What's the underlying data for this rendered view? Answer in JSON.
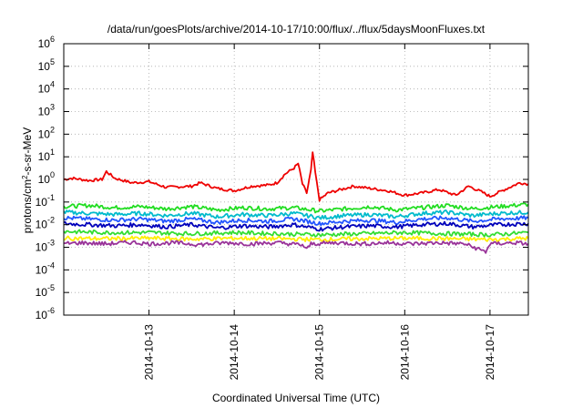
{
  "chart_data": {
    "type": "line",
    "title": "/data/run/goesPlots/archive/2014-10-17/10:00/flux/../flux/5daysMoonFluxes.txt",
    "xlabel": "Coordinated Universal Time (UTC)",
    "ylabel": {
      "pre": "protons/cm",
      "sup": "2",
      "post": "-s-sr-MeV"
    },
    "yscale": "log",
    "ylim_exp": [
      -6,
      6
    ],
    "y_ticks": [
      {
        "base": "10",
        "exp": "-6",
        "value": -6
      },
      {
        "base": "10",
        "exp": "-5",
        "value": -5
      },
      {
        "base": "10",
        "exp": "-4",
        "value": -4
      },
      {
        "base": "10",
        "exp": "-3",
        "value": -3
      },
      {
        "base": "10",
        "exp": "-2",
        "value": -2
      },
      {
        "base": "10",
        "exp": "-1",
        "value": -1
      },
      {
        "base": "10",
        "exp": "0",
        "value": 0
      },
      {
        "base": "10",
        "exp": "1",
        "value": 1
      },
      {
        "base": "10",
        "exp": "2",
        "value": 2
      },
      {
        "base": "10",
        "exp": "3",
        "value": 3
      },
      {
        "base": "10",
        "exp": "4",
        "value": 4
      },
      {
        "base": "10",
        "exp": "5",
        "value": 5
      },
      {
        "base": "10",
        "exp": "6",
        "value": 6
      }
    ],
    "xlim_days": [
      12.0,
      17.45
    ],
    "x_ticks": [
      {
        "label": "2014-10-13",
        "day": 13
      },
      {
        "label": "2014-10-14",
        "day": 14
      },
      {
        "label": "2014-10-15",
        "day": 15
      },
      {
        "label": "2014-10-16",
        "day": 16
      },
      {
        "label": "2014-10-17",
        "day": 17
      }
    ],
    "grid": true,
    "series": [
      {
        "color": "#ee0000",
        "values": [
          [
            12.0,
            0.0
          ],
          [
            12.1,
            0.05
          ],
          [
            12.3,
            -0.05
          ],
          [
            12.45,
            0.0
          ],
          [
            12.5,
            0.35
          ],
          [
            12.6,
            0.05
          ],
          [
            12.8,
            -0.15
          ],
          [
            13.0,
            -0.1
          ],
          [
            13.2,
            -0.35
          ],
          [
            13.5,
            -0.3
          ],
          [
            13.6,
            -0.15
          ],
          [
            13.8,
            -0.4
          ],
          [
            14.0,
            -0.5
          ],
          [
            14.2,
            -0.3
          ],
          [
            14.4,
            -0.25
          ],
          [
            14.5,
            -0.15
          ],
          [
            14.6,
            0.25
          ],
          [
            14.7,
            0.5
          ],
          [
            14.75,
            0.7
          ],
          [
            14.8,
            -0.2
          ],
          [
            14.85,
            -0.6
          ],
          [
            14.9,
            0.4
          ],
          [
            14.92,
            1.2
          ],
          [
            14.95,
            0.3
          ],
          [
            15.0,
            -0.9
          ],
          [
            15.1,
            -0.6
          ],
          [
            15.2,
            -0.5
          ],
          [
            15.4,
            -0.3
          ],
          [
            15.6,
            -0.4
          ],
          [
            15.8,
            -0.5
          ],
          [
            16.0,
            -0.7
          ],
          [
            16.2,
            -0.6
          ],
          [
            16.4,
            -0.45
          ],
          [
            16.6,
            -0.7
          ],
          [
            16.75,
            -0.3
          ],
          [
            16.9,
            -0.55
          ],
          [
            17.0,
            -0.75
          ],
          [
            17.2,
            -0.4
          ],
          [
            17.35,
            -0.15
          ],
          [
            17.45,
            -0.2
          ]
        ]
      },
      {
        "color": "#22dd22",
        "values": [
          [
            12.0,
            -1.2
          ],
          [
            12.3,
            -1.15
          ],
          [
            12.6,
            -1.25
          ],
          [
            12.9,
            -1.2
          ],
          [
            13.2,
            -1.3
          ],
          [
            13.5,
            -1.2
          ],
          [
            13.8,
            -1.35
          ],
          [
            14.1,
            -1.25
          ],
          [
            14.4,
            -1.3
          ],
          [
            14.7,
            -1.25
          ],
          [
            15.0,
            -1.4
          ],
          [
            15.3,
            -1.3
          ],
          [
            15.6,
            -1.2
          ],
          [
            15.9,
            -1.35
          ],
          [
            16.2,
            -1.25
          ],
          [
            16.5,
            -1.15
          ],
          [
            16.8,
            -1.3
          ],
          [
            17.1,
            -1.2
          ],
          [
            17.45,
            -1.1
          ]
        ]
      },
      {
        "color": "#00bbcc",
        "values": [
          [
            12.0,
            -1.45
          ],
          [
            12.3,
            -1.5
          ],
          [
            12.6,
            -1.55
          ],
          [
            12.9,
            -1.5
          ],
          [
            13.2,
            -1.6
          ],
          [
            13.5,
            -1.5
          ],
          [
            13.8,
            -1.65
          ],
          [
            14.1,
            -1.55
          ],
          [
            14.4,
            -1.6
          ],
          [
            14.7,
            -1.5
          ],
          [
            15.0,
            -1.7
          ],
          [
            15.3,
            -1.6
          ],
          [
            15.6,
            -1.55
          ],
          [
            15.9,
            -1.65
          ],
          [
            16.2,
            -1.5
          ],
          [
            16.5,
            -1.45
          ],
          [
            16.8,
            -1.6
          ],
          [
            17.1,
            -1.5
          ],
          [
            17.45,
            -1.45
          ]
        ]
      },
      {
        "color": "#2255ff",
        "values": [
          [
            12.0,
            -1.7
          ],
          [
            12.3,
            -1.75
          ],
          [
            12.6,
            -1.8
          ],
          [
            12.9,
            -1.75
          ],
          [
            13.2,
            -1.85
          ],
          [
            13.5,
            -1.75
          ],
          [
            13.8,
            -1.9
          ],
          [
            14.1,
            -1.8
          ],
          [
            14.4,
            -1.85
          ],
          [
            14.7,
            -1.75
          ],
          [
            15.0,
            -1.95
          ],
          [
            15.3,
            -1.85
          ],
          [
            15.6,
            -1.8
          ],
          [
            15.9,
            -1.9
          ],
          [
            16.2,
            -1.75
          ],
          [
            16.5,
            -1.7
          ],
          [
            16.8,
            -1.85
          ],
          [
            17.1,
            -1.75
          ],
          [
            17.45,
            -1.7
          ]
        ]
      },
      {
        "color": "#0000bb",
        "values": [
          [
            12.0,
            -1.95
          ],
          [
            12.3,
            -2.0
          ],
          [
            12.6,
            -2.05
          ],
          [
            12.9,
            -2.0
          ],
          [
            13.2,
            -2.1
          ],
          [
            13.5,
            -2.0
          ],
          [
            13.8,
            -2.15
          ],
          [
            14.1,
            -2.05
          ],
          [
            14.4,
            -2.1
          ],
          [
            14.7,
            -2.0
          ],
          [
            15.0,
            -2.2
          ],
          [
            15.3,
            -2.1
          ],
          [
            15.6,
            -2.05
          ],
          [
            15.9,
            -2.1
          ],
          [
            16.2,
            -2.0
          ],
          [
            16.5,
            -1.95
          ],
          [
            16.8,
            -2.1
          ],
          [
            17.1,
            -2.0
          ],
          [
            17.45,
            -1.95
          ]
        ]
      },
      {
        "color": "#33dd33",
        "values": [
          [
            12.0,
            -2.3
          ],
          [
            12.5,
            -2.35
          ],
          [
            13.0,
            -2.35
          ],
          [
            13.5,
            -2.4
          ],
          [
            14.0,
            -2.35
          ],
          [
            14.5,
            -2.4
          ],
          [
            15.0,
            -2.45
          ],
          [
            15.5,
            -2.4
          ],
          [
            16.0,
            -2.35
          ],
          [
            16.5,
            -2.4
          ],
          [
            17.0,
            -2.45
          ],
          [
            17.45,
            -2.35
          ]
        ]
      },
      {
        "color": "#ffee00",
        "values": [
          [
            12.0,
            -2.6
          ],
          [
            12.5,
            -2.62
          ],
          [
            13.0,
            -2.6
          ],
          [
            13.5,
            -2.64
          ],
          [
            14.0,
            -2.6
          ],
          [
            14.5,
            -2.62
          ],
          [
            15.0,
            -2.66
          ],
          [
            15.5,
            -2.62
          ],
          [
            16.0,
            -2.6
          ],
          [
            16.5,
            -2.62
          ],
          [
            17.0,
            -2.66
          ],
          [
            17.45,
            -2.6
          ]
        ]
      },
      {
        "color": "#993399",
        "values": [
          [
            12.0,
            -2.85
          ],
          [
            12.2,
            -2.8
          ],
          [
            12.5,
            -2.85
          ],
          [
            12.8,
            -2.78
          ],
          [
            13.0,
            -2.85
          ],
          [
            13.3,
            -2.8
          ],
          [
            13.6,
            -2.88
          ],
          [
            13.9,
            -2.8
          ],
          [
            14.2,
            -2.85
          ],
          [
            14.5,
            -2.8
          ],
          [
            14.8,
            -2.9
          ],
          [
            14.85,
            -3.1
          ],
          [
            14.9,
            -2.85
          ],
          [
            15.2,
            -2.8
          ],
          [
            15.5,
            -2.85
          ],
          [
            15.8,
            -2.8
          ],
          [
            16.1,
            -2.85
          ],
          [
            16.4,
            -2.8
          ],
          [
            16.7,
            -2.85
          ],
          [
            16.95,
            -3.2
          ],
          [
            17.0,
            -2.85
          ],
          [
            17.3,
            -2.8
          ],
          [
            17.45,
            -2.85
          ]
        ]
      }
    ]
  }
}
